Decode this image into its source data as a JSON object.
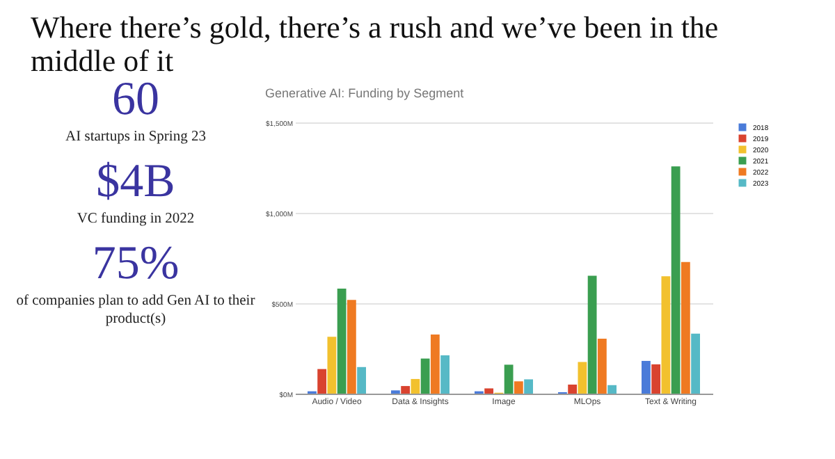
{
  "chart_data": {
    "type": "bar",
    "title": "Where there’s gold, there’s a rush and we’ve been in the middle of it",
    "subtitle": "Generative AI: Funding by Segment",
    "categories": [
      "Audio / Video",
      "Data & Insights",
      "Image",
      "MLOps",
      "Text & Writing"
    ],
    "series": [
      {
        "name": "2018",
        "color": "#4a7bd9",
        "values": [
          13,
          18,
          13,
          8,
          181
        ]
      },
      {
        "name": "2019",
        "color": "#d9432f",
        "values": [
          136,
          42,
          29,
          50,
          162
        ]
      },
      {
        "name": "2020",
        "color": "#f2c12e",
        "values": [
          314,
          81,
          5,
          175,
          649
        ]
      },
      {
        "name": "2021",
        "color": "#3a9e50",
        "values": [
          581,
          194,
          160,
          652,
          1257
        ]
      },
      {
        "name": "2022",
        "color": "#ef7a22",
        "values": [
          518,
          327,
          68,
          304,
          728
        ]
      },
      {
        "name": "2023",
        "color": "#56b9c6",
        "values": [
          147,
          212,
          79,
          47,
          332
        ]
      }
    ],
    "ylim": [
      0,
      1500
    ],
    "yticks": [
      {
        "value": 0,
        "label": "$0M"
      },
      {
        "value": 500,
        "label": "$500M"
      },
      {
        "value": 1000,
        "label": "$1,000M"
      },
      {
        "value": 1500,
        "label": "$1,500M"
      }
    ],
    "grid": "y",
    "legend": "top right",
    "annotations": [
      "60",
      "AI startups in Spring 23",
      "$4B",
      "VC funding in 2022",
      "75%",
      "of companies plan to add Gen AI to their product(s)"
    ]
  }
}
